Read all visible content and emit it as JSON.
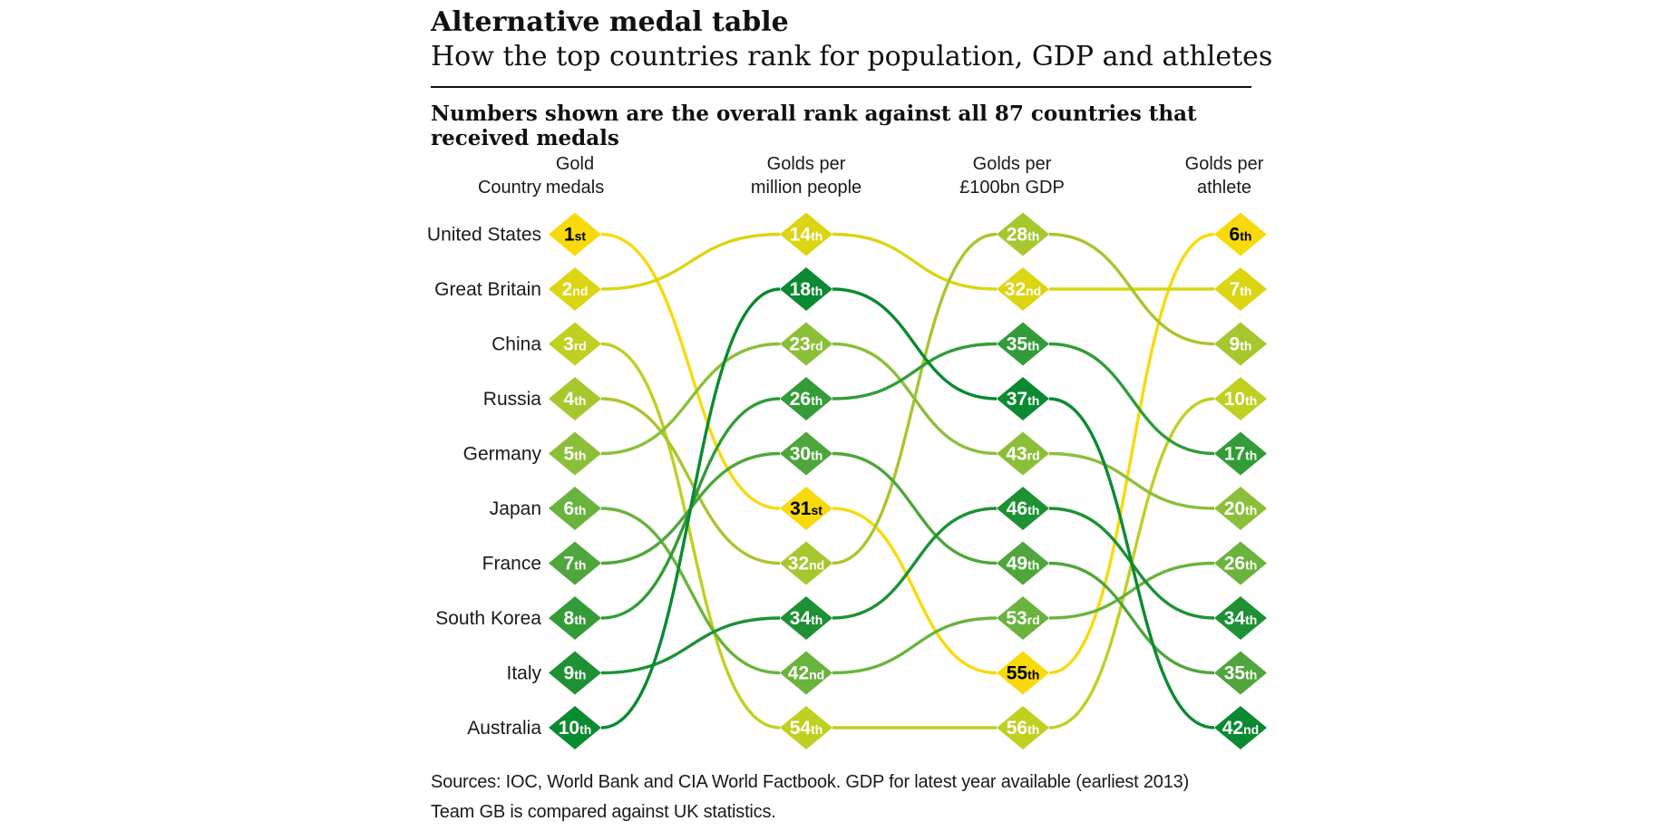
{
  "header": {
    "title": "Alternative medal table",
    "subtitle": "How the top countries rank for population, GDP and athletes",
    "note": "Numbers shown are the overall rank against all 87 countries that received medals"
  },
  "table_headers": {
    "country_label": "Country",
    "columns": [
      {
        "key": "gold_medals",
        "lines": [
          "Gold",
          "medals"
        ]
      },
      {
        "key": "golds_per_million",
        "lines": [
          "Golds per",
          "million people"
        ]
      },
      {
        "key": "golds_per_gdp",
        "lines": [
          "Golds per",
          "£100bn GDP"
        ]
      },
      {
        "key": "golds_per_athlete",
        "lines": [
          "Golds per",
          "athlete"
        ]
      }
    ]
  },
  "chart_data": {
    "type": "bump",
    "title": "Alternative medal table",
    "subtitle": "How the top countries rank for population, GDP and athletes",
    "description": "Ranked slope (bump) chart. Each column lists the overall rank against all 87 medal-winning countries, sorted best-to-worst from top to bottom; coloured curves trace each country across the four measures. Yellow = top of gold-medal table, dark green = 10th.",
    "metrics": [
      "gold_medals",
      "golds_per_million",
      "golds_per_gdp",
      "golds_per_athlete"
    ],
    "metric_labels": [
      "Gold medals",
      "Golds per million people",
      "Golds per £100bn GDP",
      "Golds per athlete"
    ],
    "countries": [
      {
        "name": "United States",
        "color": "#f8da0c",
        "number_color": "#000000",
        "gold_medals": "1st",
        "golds_per_million": "31st",
        "golds_per_gdp": "55th",
        "golds_per_athlete": "6th"
      },
      {
        "name": "Great Britain",
        "color": "#dbd512",
        "number_color": "#ffffff",
        "gold_medals": "2nd",
        "golds_per_million": "14th",
        "golds_per_gdp": "32nd",
        "golds_per_athlete": "7th"
      },
      {
        "name": "China",
        "color": "#bfd021",
        "number_color": "#ffffff",
        "gold_medals": "3rd",
        "golds_per_million": "54th",
        "golds_per_gdp": "56th",
        "golds_per_athlete": "10th"
      },
      {
        "name": "Russia",
        "color": "#a6c72e",
        "number_color": "#ffffff",
        "gold_medals": "4th",
        "golds_per_million": "32nd",
        "golds_per_gdp": "28th",
        "golds_per_athlete": "9th"
      },
      {
        "name": "Germany",
        "color": "#8cbf39",
        "number_color": "#ffffff",
        "gold_medals": "5th",
        "golds_per_million": "23rd",
        "golds_per_gdp": "43rd",
        "golds_per_athlete": "20th"
      },
      {
        "name": "Japan",
        "color": "#6ab33d",
        "number_color": "#ffffff",
        "gold_medals": "6th",
        "golds_per_million": "42nd",
        "golds_per_gdp": "53rd",
        "golds_per_athlete": "26th"
      },
      {
        "name": "France",
        "color": "#4fa63c",
        "number_color": "#ffffff",
        "gold_medals": "7th",
        "golds_per_million": "30th",
        "golds_per_gdp": "49th",
        "golds_per_athlete": "35th"
      },
      {
        "name": "South Korea",
        "color": "#339c38",
        "number_color": "#ffffff",
        "gold_medals": "8th",
        "golds_per_million": "26th",
        "golds_per_gdp": "35th",
        "golds_per_athlete": "17th"
      },
      {
        "name": "Italy",
        "color": "#1d9134",
        "number_color": "#ffffff",
        "gold_medals": "9th",
        "golds_per_million": "34th",
        "golds_per_gdp": "46th",
        "golds_per_athlete": "34th"
      },
      {
        "name": "Australia",
        "color": "#0a8a31",
        "number_color": "#ffffff",
        "gold_medals": "10th",
        "golds_per_million": "18th",
        "golds_per_gdp": "37th",
        "golds_per_athlete": "42nd"
      }
    ]
  },
  "footer": {
    "line1": "Sources: IOC, World Bank and CIA World Factbook. GDP for latest year available (earliest 2013)",
    "line2": "Team GB is compared against UK statistics."
  }
}
